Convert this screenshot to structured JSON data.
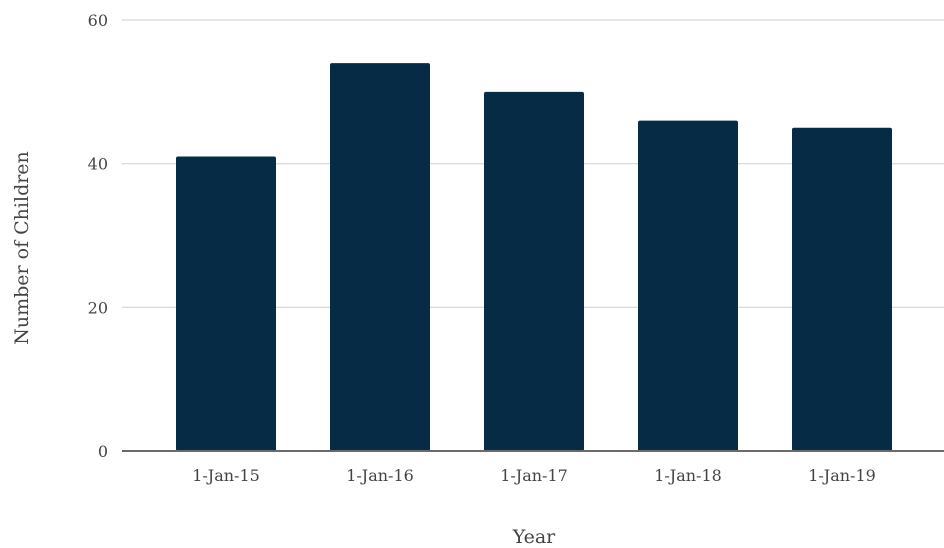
{
  "chart_data": {
    "type": "bar",
    "title": "",
    "xlabel": "Year",
    "ylabel": "Number of Children",
    "categories": [
      "1-Jan-15",
      "1-Jan-16",
      "1-Jan-17",
      "1-Jan-18",
      "1-Jan-19"
    ],
    "values": [
      41,
      54,
      50,
      46,
      45
    ],
    "ylim": [
      0,
      60
    ],
    "yticks": [
      0,
      20,
      40,
      60
    ],
    "grid": true,
    "legend": "none",
    "colors": {
      "bar": "#062c45"
    }
  }
}
